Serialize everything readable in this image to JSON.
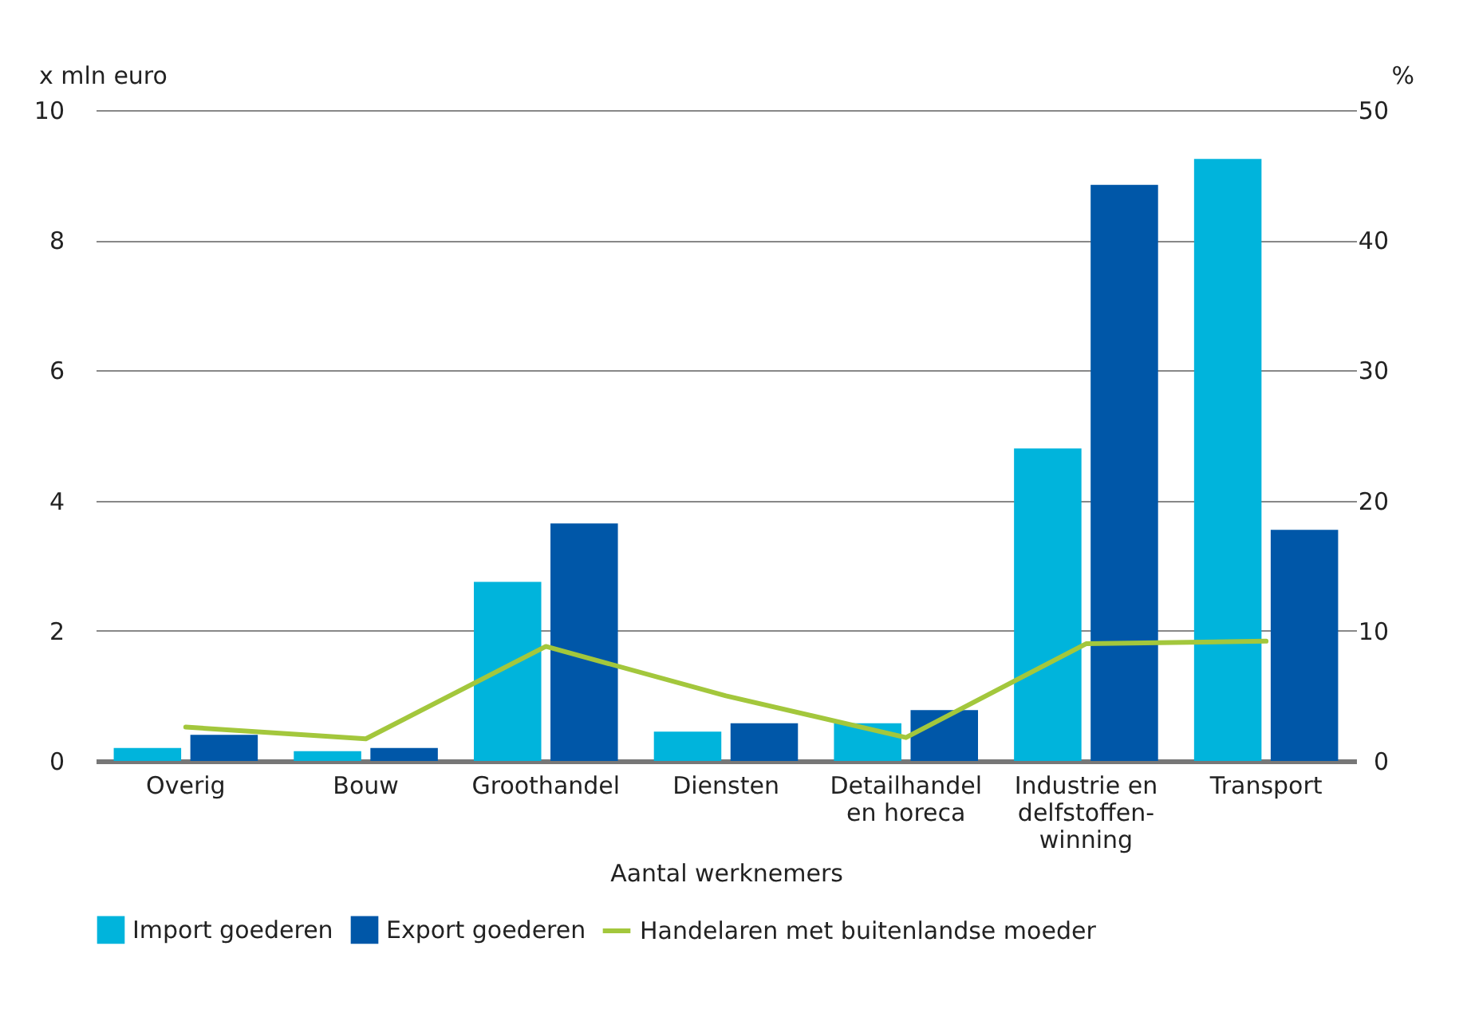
{
  "chart_data": {
    "type": "bar",
    "xlabel": "Aantal werknemers",
    "ylabel": "x mln euro",
    "y2label": "%",
    "categories": [
      "Overig",
      "Bouw",
      "Groothandel",
      "Diensten",
      "Detailhandel en horeca",
      "Industrie en delfstoffen-winning",
      "Transport"
    ],
    "series": [
      {
        "name": "Import goederen",
        "color": "#00b4dc",
        "values": [
          0.2,
          0.15,
          2.75,
          0.45,
          0.58,
          4.8,
          9.25
        ]
      },
      {
        "name": "Export goederen",
        "color": "#0057a8",
        "values": [
          0.4,
          0.2,
          3.65,
          0.58,
          0.78,
          8.85,
          3.55
        ]
      },
      {
        "name": "Handelaren met buitenlandse moeder",
        "type": "line",
        "axis": "y2",
        "color": "#a3c73c",
        "values": [
          2.6,
          1.7,
          8.8,
          5.0,
          1.8,
          9.0,
          9.2
        ]
      }
    ],
    "ylim": [
      0,
      10
    ],
    "yticks": [
      0,
      2,
      4,
      6,
      8,
      10
    ],
    "y2lim": [
      0,
      50
    ],
    "y2ticks": [
      0,
      10,
      20,
      30,
      40,
      50
    ],
    "grid": "y",
    "legend": "bottom left"
  }
}
